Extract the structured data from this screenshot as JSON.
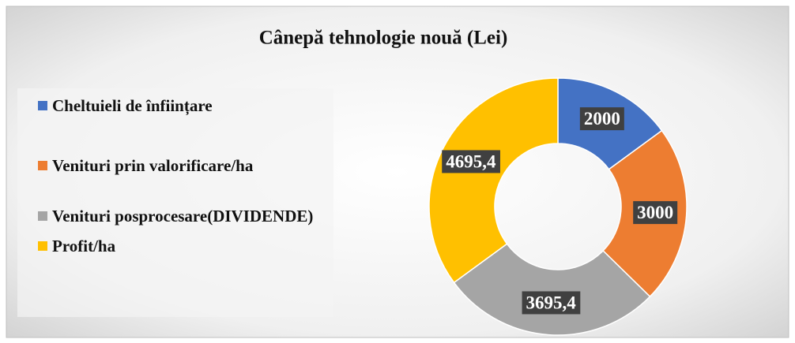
{
  "chart_data": {
    "type": "donut",
    "title": "Cânepă tehnologie nouă (Lei)",
    "categories": [
      "Cheltuieli de înființare",
      "Venituri prin valorificare/ha",
      "Venituri posprocesare(DIVIDENDE)",
      "Profit/ha"
    ],
    "values": [
      2000,
      3000,
      3695.4,
      4695.4
    ],
    "value_labels": [
      "2000",
      "3000",
      "3695,4",
      "4695,4"
    ],
    "colors": [
      "#4472c4",
      "#ed7d31",
      "#a5a5a5",
      "#ffc000"
    ],
    "legend": "left"
  }
}
